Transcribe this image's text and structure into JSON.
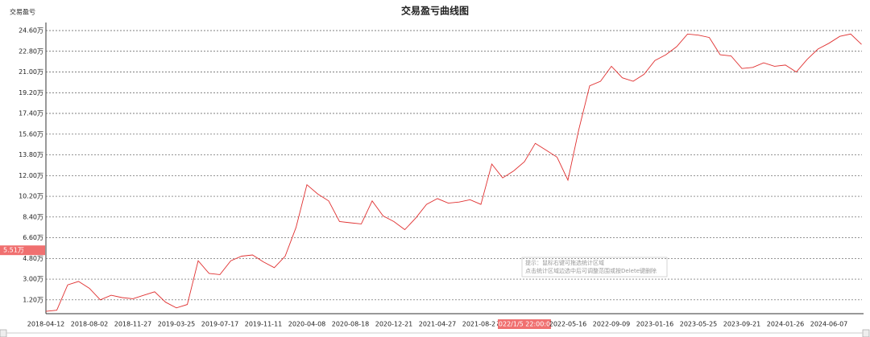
{
  "chart_data": {
    "type": "line",
    "title": "交易盈亏曲线图",
    "y_label": "交易盈亏",
    "categories": [
      "2018-04-12",
      null,
      null,
      null,
      "2018-08-02",
      null,
      null,
      null,
      "2018-11-27",
      null,
      null,
      null,
      "2019-03-25",
      null,
      null,
      null,
      "2019-07-17",
      null,
      null,
      null,
      "2019-11-11",
      null,
      null,
      null,
      "2020-04-08",
      null,
      null,
      null,
      "2020-08-18",
      null,
      null,
      null,
      "2020-12-21",
      null,
      null,
      null,
      "2021-04-27",
      null,
      null,
      null,
      "2021-08-27",
      null,
      null,
      null,
      "2022/1/5 22:00:00",
      null,
      null,
      null,
      "2022-05-16",
      null,
      null,
      null,
      "2022-09-09",
      null,
      null,
      null,
      "2023-01-16",
      null,
      null,
      null,
      "2023-05-25",
      null,
      null,
      null,
      "2023-09-21",
      null,
      null,
      null,
      "2024-01-26",
      null,
      null,
      null,
      "2024-06-07",
      null,
      null,
      null
    ],
    "cursor_x_index": 44,
    "series": [
      {
        "name": "交易盈亏",
        "color": "#e03030",
        "values": [
          0.2,
          0.3,
          2.5,
          2.8,
          2.2,
          1.2,
          1.6,
          1.4,
          1.3,
          1.6,
          1.9,
          1.0,
          0.5,
          0.8,
          4.6,
          3.5,
          3.4,
          4.6,
          5.0,
          5.1,
          4.5,
          4.0,
          5.0,
          7.5,
          11.2,
          10.4,
          9.8,
          8.0,
          7.9,
          7.8,
          9.8,
          8.5,
          8.0,
          7.3,
          8.3,
          9.5,
          10.0,
          9.6,
          9.7,
          9.9,
          9.5,
          13.0,
          11.8,
          12.4,
          13.2,
          14.8,
          14.2,
          13.6,
          11.6,
          16.0,
          19.8,
          20.2,
          21.5,
          20.5,
          20.2,
          20.8,
          22.0,
          22.5,
          23.2,
          24.3,
          24.2,
          24.0,
          22.5,
          22.4,
          21.3,
          21.4,
          21.8,
          21.5,
          21.6,
          21.0,
          22.1,
          23.0,
          23.5,
          24.1,
          24.3,
          23.4
        ]
      }
    ],
    "ylim": [
      0,
      25.3
    ],
    "yticks": [
      {
        "value": 1.2,
        "label": "1.20万"
      },
      {
        "value": 3.0,
        "label": "3.00万"
      },
      {
        "value": 4.8,
        "label": "4.80万"
      },
      {
        "value": 6.6,
        "label": "6.60万"
      },
      {
        "value": 8.4,
        "label": "8.40万"
      },
      {
        "value": 10.2,
        "label": "10.20万"
      },
      {
        "value": 12.0,
        "label": "12.00万"
      },
      {
        "value": 13.8,
        "label": "13.80万"
      },
      {
        "value": 15.6,
        "label": "15.60万"
      },
      {
        "value": 17.4,
        "label": "17.40万"
      },
      {
        "value": 19.2,
        "label": "19.20万"
      },
      {
        "value": 21.0,
        "label": "21.00万"
      },
      {
        "value": 22.8,
        "label": "22.80万"
      },
      {
        "value": 24.6,
        "label": "24.60万"
      }
    ],
    "cursor_y": {
      "value": 5.51,
      "label": "5.51万"
    },
    "grid": true,
    "hint": [
      "提示：鼠标右键可拖选统计区域",
      "点击统计区域边选中后可调整范围或按Delete键删除"
    ]
  }
}
